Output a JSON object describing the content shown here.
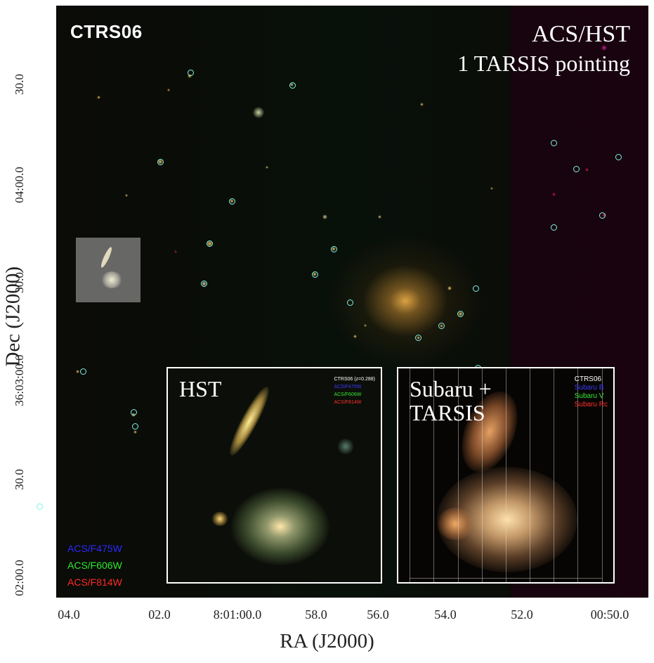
{
  "image": {
    "object_label": "CTRS06",
    "instrument_label": "ACS/HST",
    "pointing_label": "1 TARSIS pointing",
    "filters": [
      {
        "label": "ACS/F475W",
        "color": "#2a2aff"
      },
      {
        "label": "ACS/F606W",
        "color": "#2ee82e"
      },
      {
        "label": "ACS/F814W",
        "color": "#ff2a2a"
      }
    ]
  },
  "insets": {
    "hst": {
      "title": "HST",
      "legend": [
        {
          "label": "CTRS06 (z=0.288)",
          "color": "#ffffff"
        },
        {
          "label": "ACS/F475W",
          "color": "#3a3aff"
        },
        {
          "label": "ACS/F606W",
          "color": "#35e835"
        },
        {
          "label": "ACS/F814W",
          "color": "#ff3030"
        }
      ]
    },
    "subaru": {
      "title": "Subaru +\nTARSIS",
      "legend": [
        {
          "label": "CTRS06",
          "color": "#ffffff"
        },
        {
          "label": "Subaru B",
          "color": "#3a3aff"
        },
        {
          "label": "Subaru V",
          "color": "#35e835"
        },
        {
          "label": "Subaru Rc",
          "color": "#ff3030"
        }
      ]
    }
  },
  "axes": {
    "xlabel": "RA (J2000)",
    "ylabel": "Dec (J2000)",
    "xticks": [
      "04.0",
      "02.0",
      "8:01:00.0",
      "58.0",
      "56.0",
      "54.0",
      "52.0",
      "00:50.0"
    ],
    "yticks": [
      "30.0",
      "04:00.0",
      "30.0",
      "36:03:00.0",
      "30.0",
      "02:00.0"
    ]
  }
}
